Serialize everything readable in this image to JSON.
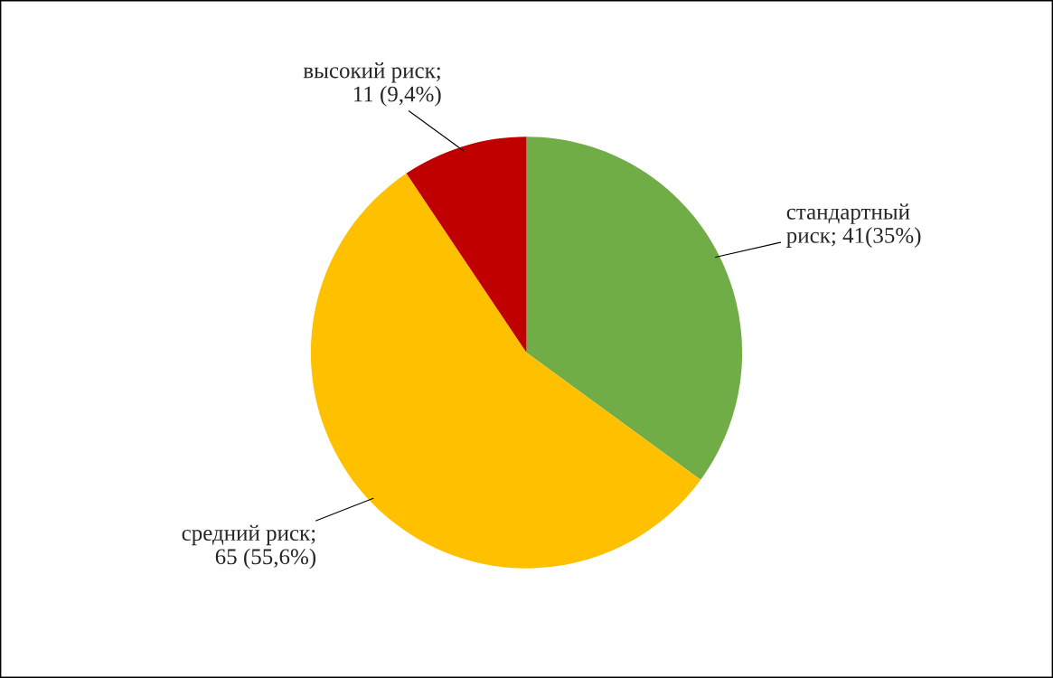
{
  "chart_data": {
    "type": "pie",
    "categories": [
      "стандартный\nриск; 41(35%)",
      "средний риск;\n65 (55,6%)",
      "высокий риск;\n11 (9,4%)"
    ],
    "values": [
      41,
      65,
      11
    ],
    "colors": [
      "#70ad47",
      "#ffc000",
      "#c00000"
    ]
  }
}
